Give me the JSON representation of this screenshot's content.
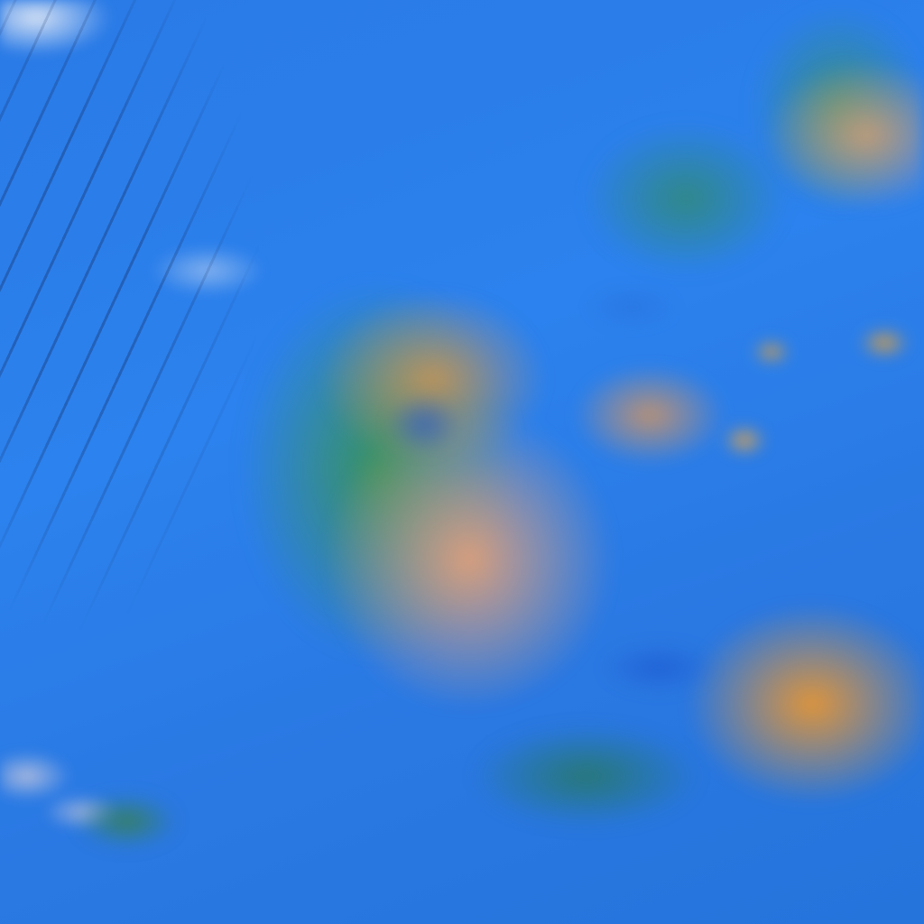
{
  "image": {
    "subject": "satellite-false-color-cloud-imagery",
    "colors": {
      "ocean": "#2a7ae6",
      "high_cloud": "#e1a078",
      "deep_convection": "#e89632",
      "mid_cloud": "#3c9646",
      "thin_cloud": "#e6ebf5"
    }
  }
}
